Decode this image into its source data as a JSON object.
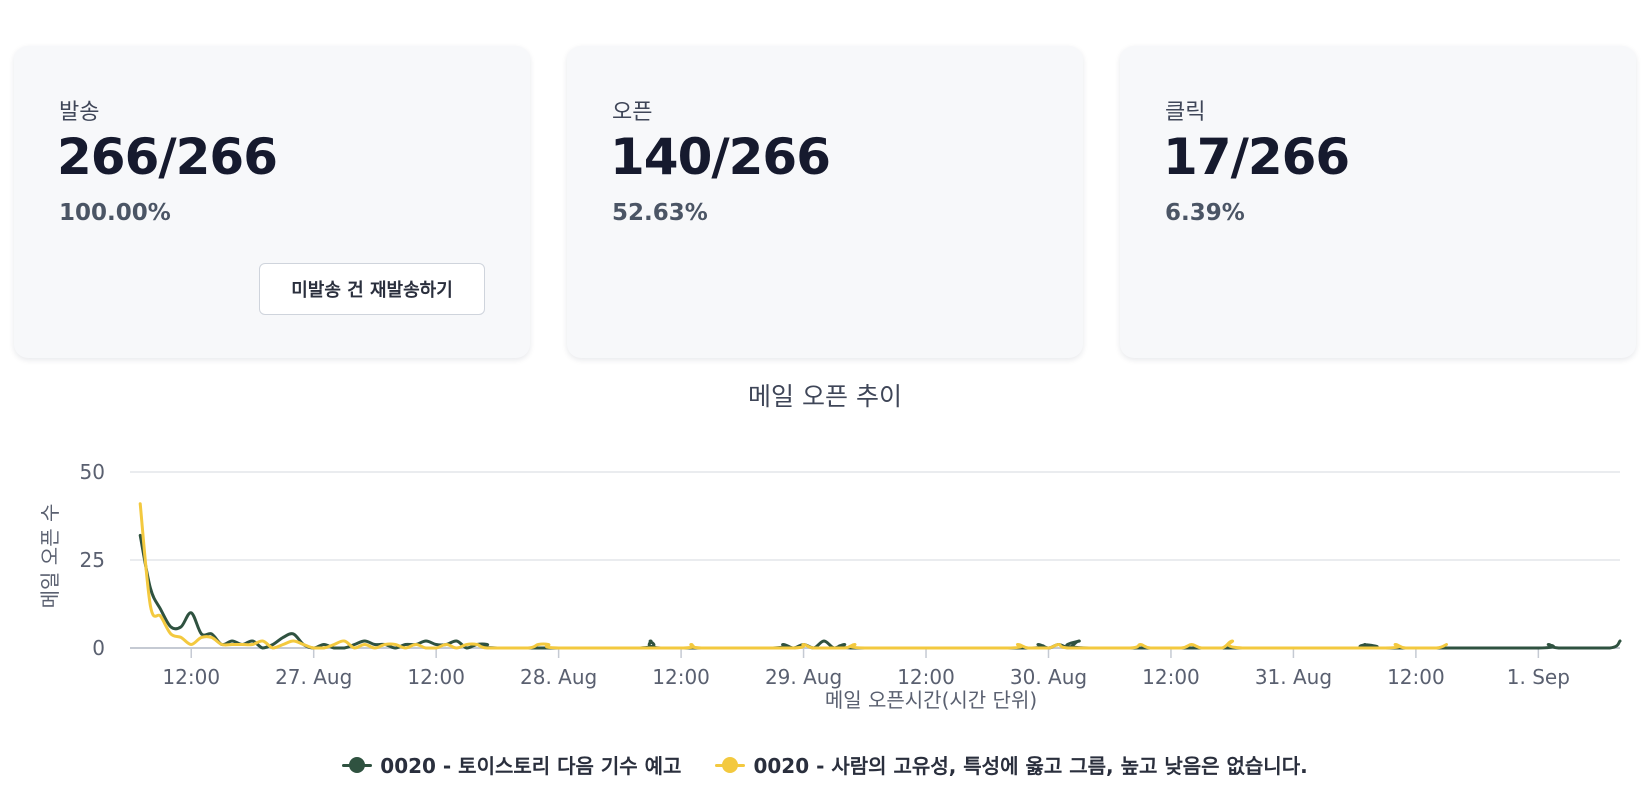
{
  "cards": [
    {
      "label": "발송",
      "value": "266/266",
      "percent": "100.00%"
    },
    {
      "label": "오픈",
      "value": "140/266",
      "percent": "52.63%"
    },
    {
      "label": "클릭",
      "value": "17/266",
      "percent": "6.39%"
    }
  ],
  "resend_button": {
    "label": "미발송 건 재발송하기"
  },
  "chart_data": {
    "type": "line",
    "title": "메일 오픈 추이",
    "xlabel": "메일 오픈시간(시간 단위)",
    "ylabel": "메일 오픈 수",
    "ylim": [
      0,
      50
    ],
    "yticks": [
      0,
      25,
      50
    ],
    "xlim": [
      "2025-08-26 06:00",
      "2025-09-01 08:00"
    ],
    "xticks": [
      "12:00",
      "27. Aug",
      "12:00",
      "28. Aug",
      "12:00",
      "29. Aug",
      "12:00",
      "30. Aug",
      "12:00",
      "31. Aug",
      "12:00",
      "1. Sep"
    ],
    "grid": true,
    "legend_position": "bottom-center",
    "series": [
      {
        "name": "0020 - 토이스토리 다음 기수 예고",
        "color": "#2f5240",
        "points": [
          [
            "2025-08-26 07:00",
            32
          ],
          [
            "2025-08-26 08:00",
            17
          ],
          [
            "2025-08-26 09:00",
            11
          ],
          [
            "2025-08-26 10:00",
            6
          ],
          [
            "2025-08-26 11:00",
            6
          ],
          [
            "2025-08-26 12:00",
            10
          ],
          [
            "2025-08-26 13:00",
            4
          ],
          [
            "2025-08-26 14:00",
            4
          ],
          [
            "2025-08-26 15:00",
            1
          ],
          [
            "2025-08-26 16:00",
            2
          ],
          [
            "2025-08-26 17:00",
            1
          ],
          [
            "2025-08-26 18:00",
            2
          ],
          [
            "2025-08-26 19:00",
            0
          ],
          [
            "2025-08-26 20:00",
            1
          ],
          [
            "2025-08-26 21:00",
            3
          ],
          [
            "2025-08-26 22:00",
            4
          ],
          [
            "2025-08-26 23:00",
            1
          ],
          [
            "2025-08-27 00:00",
            0
          ],
          [
            "2025-08-27 01:00",
            1
          ],
          [
            "2025-08-27 02:00",
            0
          ],
          [
            "2025-08-27 03:00",
            0
          ],
          [
            "2025-08-27 04:00",
            1
          ],
          [
            "2025-08-27 05:00",
            2
          ],
          [
            "2025-08-27 06:00",
            1
          ],
          [
            "2025-08-27 07:00",
            1
          ],
          [
            "2025-08-27 08:00",
            0
          ],
          [
            "2025-08-27 09:00",
            1
          ],
          [
            "2025-08-27 10:00",
            1
          ],
          [
            "2025-08-27 11:00",
            2
          ],
          [
            "2025-08-27 12:00",
            1
          ],
          [
            "2025-08-27 13:00",
            1
          ],
          [
            "2025-08-27 14:00",
            2
          ],
          [
            "2025-08-27 15:00",
            0
          ],
          [
            "2025-08-27 16:00",
            1
          ],
          [
            "2025-08-27 17:00",
            1
          ],
          [
            "2025-08-27 18:00",
            0
          ],
          [
            "2025-08-28 08:00",
            0
          ],
          [
            "2025-08-28 09:00",
            2
          ],
          [
            "2025-08-28 10:00",
            0
          ],
          [
            "2025-08-28 21:00",
            0
          ],
          [
            "2025-08-28 22:00",
            1
          ],
          [
            "2025-08-28 23:00",
            0
          ],
          [
            "2025-08-29 00:00",
            1
          ],
          [
            "2025-08-29 01:00",
            0
          ],
          [
            "2025-08-29 02:00",
            2
          ],
          [
            "2025-08-29 03:00",
            0
          ],
          [
            "2025-08-29 04:00",
            1
          ],
          [
            "2025-08-29 05:00",
            0
          ],
          [
            "2025-08-29 22:00",
            0
          ],
          [
            "2025-08-29 23:00",
            1
          ],
          [
            "2025-08-30 00:00",
            0
          ],
          [
            "2025-08-30 01:00",
            1
          ],
          [
            "2025-08-30 02:00",
            0
          ],
          [
            "2025-08-30 03:00",
            2
          ],
          [
            "2025-08-30 04:00",
            0
          ],
          [
            "2025-08-31 06:00",
            0
          ],
          [
            "2025-08-31 07:00",
            1
          ],
          [
            "2025-08-31 08:00",
            0
          ],
          [
            "2025-09-01 00:00",
            0
          ],
          [
            "2025-09-01 01:00",
            1
          ],
          [
            "2025-09-01 02:00",
            0
          ],
          [
            "2025-09-01 07:00",
            0
          ],
          [
            "2025-09-01 08:00",
            2
          ]
        ]
      },
      {
        "name": "0020 - 사람의 고유성, 특성에 옳고 그름, 높고 낮음은 없습니다.",
        "color": "#f3c93f",
        "points": [
          [
            "2025-08-26 07:00",
            41
          ],
          [
            "2025-08-26 08:00",
            12
          ],
          [
            "2025-08-26 09:00",
            9
          ],
          [
            "2025-08-26 10:00",
            4
          ],
          [
            "2025-08-26 11:00",
            3
          ],
          [
            "2025-08-26 12:00",
            1
          ],
          [
            "2025-08-26 13:00",
            3
          ],
          [
            "2025-08-26 14:00",
            3
          ],
          [
            "2025-08-26 15:00",
            1
          ],
          [
            "2025-08-26 16:00",
            1
          ],
          [
            "2025-08-26 17:00",
            1
          ],
          [
            "2025-08-26 18:00",
            1
          ],
          [
            "2025-08-26 19:00",
            2
          ],
          [
            "2025-08-26 20:00",
            0
          ],
          [
            "2025-08-26 21:00",
            1
          ],
          [
            "2025-08-26 22:00",
            2
          ],
          [
            "2025-08-26 23:00",
            1
          ],
          [
            "2025-08-27 00:00",
            0
          ],
          [
            "2025-08-27 01:00",
            0
          ],
          [
            "2025-08-27 02:00",
            1
          ],
          [
            "2025-08-27 03:00",
            2
          ],
          [
            "2025-08-27 04:00",
            0
          ],
          [
            "2025-08-27 05:00",
            1
          ],
          [
            "2025-08-27 06:00",
            0
          ],
          [
            "2025-08-27 07:00",
            1
          ],
          [
            "2025-08-27 08:00",
            1
          ],
          [
            "2025-08-27 09:00",
            0
          ],
          [
            "2025-08-27 10:00",
            1
          ],
          [
            "2025-08-27 11:00",
            0
          ],
          [
            "2025-08-27 12:00",
            0
          ],
          [
            "2025-08-27 13:00",
            1
          ],
          [
            "2025-08-27 14:00",
            0
          ],
          [
            "2025-08-27 15:00",
            1
          ],
          [
            "2025-08-27 16:00",
            1
          ],
          [
            "2025-08-27 17:00",
            0
          ],
          [
            "2025-08-27 21:00",
            0
          ],
          [
            "2025-08-27 22:00",
            1
          ],
          [
            "2025-08-27 23:00",
            1
          ],
          [
            "2025-08-28 00:00",
            0
          ],
          [
            "2025-08-28 12:00",
            0
          ],
          [
            "2025-08-28 13:00",
            1
          ],
          [
            "2025-08-28 14:00",
            0
          ],
          [
            "2025-08-28 23:00",
            0
          ],
          [
            "2025-08-29 00:00",
            1
          ],
          [
            "2025-08-29 01:00",
            0
          ],
          [
            "2025-08-29 04:00",
            0
          ],
          [
            "2025-08-29 05:00",
            1
          ],
          [
            "2025-08-29 06:00",
            0
          ],
          [
            "2025-08-29 20:00",
            0
          ],
          [
            "2025-08-29 21:00",
            1
          ],
          [
            "2025-08-29 22:00",
            0
          ],
          [
            "2025-08-30 00:00",
            0
          ],
          [
            "2025-08-30 01:00",
            1
          ],
          [
            "2025-08-30 02:00",
            0
          ],
          [
            "2025-08-30 08:00",
            0
          ],
          [
            "2025-08-30 09:00",
            1
          ],
          [
            "2025-08-30 10:00",
            0
          ],
          [
            "2025-08-30 13:00",
            0
          ],
          [
            "2025-08-30 14:00",
            1
          ],
          [
            "2025-08-30 15:00",
            0
          ],
          [
            "2025-08-30 17:00",
            0
          ],
          [
            "2025-08-30 18:00",
            2
          ],
          [
            "2025-08-30 19:00",
            0
          ],
          [
            "2025-08-31 09:00",
            0
          ],
          [
            "2025-08-31 10:00",
            1
          ],
          [
            "2025-08-31 11:00",
            0
          ],
          [
            "2025-08-31 14:00",
            0
          ],
          [
            "2025-08-31 15:00",
            1
          ]
        ]
      }
    ]
  }
}
